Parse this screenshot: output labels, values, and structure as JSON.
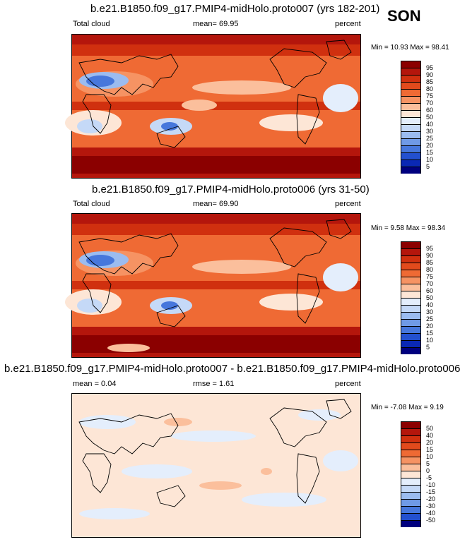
{
  "season": "SON",
  "panels": [
    {
      "title": "b.e21.B1850.f09_g17.PMIP4-midHolo.proto007 (yrs 182-201)",
      "left_label": "Total cloud",
      "center_label": "mean=  69.95",
      "right_label": "percent",
      "minmax": "Min =  10.93 Max =  98.41",
      "colorbar_labels": [
        "95",
        "90",
        "85",
        "80",
        "75",
        "70",
        "60",
        "50",
        "40",
        "30",
        "25",
        "20",
        "15",
        "10",
        "5"
      ]
    },
    {
      "title": "b.e21.B1850.f09_g17.PMIP4-midHolo.proto006 (yrs 31-50)",
      "left_label": "Total cloud",
      "center_label": "mean=  69.90",
      "right_label": "percent",
      "minmax": "Min =  9.58 Max =  98.34",
      "colorbar_labels": [
        "95",
        "90",
        "85",
        "80",
        "75",
        "70",
        "60",
        "50",
        "40",
        "30",
        "25",
        "20",
        "15",
        "10",
        "5"
      ]
    },
    {
      "title": "b.e21.B1850.f09_g17.PMIP4-midHolo.proto007 - b.e21.B1850.f09_g17.PMIP4-midHolo.proto006",
      "left_label": "mean =   0.04",
      "center_label": "rmse =   1.61",
      "right_label": "percent",
      "minmax": "Min =  -7.08 Max =  9.19",
      "colorbar_labels": [
        "50",
        "40",
        "20",
        "15",
        "10",
        "5",
        "0",
        "-5",
        "-10",
        "-15",
        "-20",
        "-30",
        "-40",
        "-50"
      ]
    }
  ],
  "colors": {
    "abs_scale": [
      "#8b0000",
      "#b4160c",
      "#d0300f",
      "#e24a1c",
      "#ef6a34",
      "#f69363",
      "#fbbf9c",
      "#fde6d6",
      "#e4eefc",
      "#c5d9f7",
      "#9bbcf0",
      "#6f9ae6",
      "#4677dc",
      "#2350cf",
      "#0a28b5",
      "#00007f"
    ],
    "diff_scale": [
      "#8b0000",
      "#b4160c",
      "#d0300f",
      "#e24a1c",
      "#ef6a34",
      "#f69363",
      "#fbbf9c",
      "#fde6d6",
      "#e4eefc",
      "#c5d9f7",
      "#9bbcf0",
      "#6f9ae6",
      "#4677dc",
      "#2350cf",
      "#00007f"
    ]
  }
}
